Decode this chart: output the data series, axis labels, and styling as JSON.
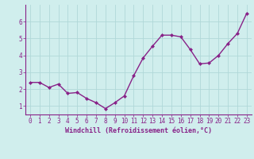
{
  "x": [
    0,
    1,
    2,
    3,
    4,
    5,
    6,
    7,
    8,
    9,
    10,
    11,
    12,
    13,
    14,
    15,
    16,
    17,
    18,
    19,
    20,
    21,
    22,
    23
  ],
  "y": [
    2.4,
    2.4,
    2.1,
    2.3,
    1.75,
    1.8,
    1.45,
    1.2,
    0.85,
    1.2,
    1.6,
    2.8,
    3.85,
    4.55,
    5.2,
    5.2,
    5.1,
    4.35,
    3.5,
    3.55,
    4.0,
    4.7,
    5.3,
    6.5
  ],
  "line_color": "#882288",
  "marker": "D",
  "marker_size": 2.0,
  "bg_color": "#d0eeed",
  "grid_color": "#b0d8d8",
  "xlabel": "Windchill (Refroidissement éolien,°C)",
  "xlim": [
    -0.5,
    23.5
  ],
  "ylim": [
    0.5,
    7.0
  ],
  "yticks": [
    1,
    2,
    3,
    4,
    5,
    6
  ],
  "xticks": [
    0,
    1,
    2,
    3,
    4,
    5,
    6,
    7,
    8,
    9,
    10,
    11,
    12,
    13,
    14,
    15,
    16,
    17,
    18,
    19,
    20,
    21,
    22,
    23
  ],
  "xlabel_fontsize": 6.0,
  "tick_fontsize": 5.5,
  "line_width": 1.0,
  "fig_width": 3.2,
  "fig_height": 2.0,
  "dpi": 100
}
